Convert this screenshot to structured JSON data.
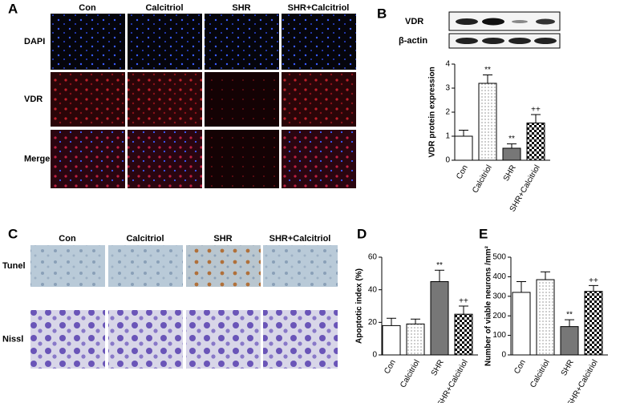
{
  "panel_labels": [
    "A",
    "B",
    "C",
    "D",
    "E"
  ],
  "panel_a": {
    "columns": [
      "Con",
      "Calcitriol",
      "SHR",
      "SHR+Calcitriol"
    ],
    "rows": [
      "DAPI",
      "VDR",
      "Merge"
    ]
  },
  "panel_b_blot": {
    "rows": [
      "VDR",
      "β-actin"
    ]
  },
  "panel_c": {
    "columns": [
      "Con",
      "Calcitriol",
      "SHR",
      "SHR+Calcitriol"
    ],
    "rows": [
      "Tunel",
      "Nissl"
    ]
  },
  "chart_data": [
    {
      "type": "bar",
      "ylabel": "VDR protein expression",
      "categories": [
        "Con",
        "Calcitriol",
        "SHR",
        "SHR+Calcitriol"
      ],
      "values": [
        1.0,
        3.2,
        0.5,
        1.55
      ],
      "errors": [
        0.25,
        0.35,
        0.18,
        0.35
      ],
      "annotations": [
        null,
        "**",
        "**",
        "++"
      ],
      "fills": [
        "white",
        "dots",
        "gray",
        "checker"
      ],
      "ylim": [
        0,
        4
      ],
      "yticks": [
        0,
        1,
        2,
        3,
        4
      ]
    },
    {
      "type": "bar",
      "ylabel": "Apoptotic index (%)",
      "categories": [
        "Con",
        "Calcitriol",
        "SHR",
        "SHR+Calcitriol"
      ],
      "values": [
        18,
        19,
        45,
        25
      ],
      "errors": [
        4.5,
        3,
        7,
        5
      ],
      "annotations": [
        null,
        null,
        "**",
        "++"
      ],
      "fills": [
        "white",
        "dots",
        "gray",
        "checker"
      ],
      "ylim": [
        0,
        60
      ],
      "yticks": [
        0,
        20,
        40,
        60
      ]
    },
    {
      "type": "bar",
      "ylabel": "Number of viable neurons /mm²",
      "categories": [
        "Con",
        "Calcitriol",
        "SHR",
        "SHR+Calcitriol"
      ],
      "values": [
        320,
        385,
        145,
        325
      ],
      "errors": [
        55,
        40,
        35,
        30
      ],
      "annotations": [
        null,
        null,
        "**",
        "++"
      ],
      "fills": [
        "white",
        "dots",
        "gray",
        "checker"
      ],
      "ylim": [
        0,
        500
      ],
      "yticks": [
        0,
        100,
        200,
        300,
        400,
        500
      ]
    }
  ]
}
